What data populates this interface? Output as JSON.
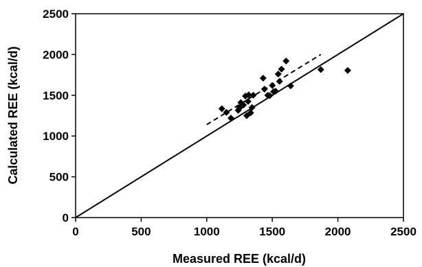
{
  "chart_data": {
    "type": "scatter",
    "xlabel": "Measured REE (kcal/d)",
    "ylabel": "Calculated REE (kcal/d)",
    "xlim": [
      0,
      2500
    ],
    "ylim": [
      0,
      2500
    ],
    "xticks": [
      "0",
      "500",
      "1000",
      "1500",
      "2000",
      "2500"
    ],
    "yticks": [
      "0",
      "500",
      "1000",
      "1500",
      "2000",
      "2500"
    ],
    "grid": false,
    "legend": "none",
    "marker": "diamond",
    "marker_color": "#000000",
    "series": [
      {
        "points": [
          [
            1115,
            1335
          ],
          [
            1150,
            1290
          ],
          [
            1185,
            1220
          ],
          [
            1240,
            1315
          ],
          [
            1250,
            1345
          ],
          [
            1260,
            1410
          ],
          [
            1280,
            1380
          ],
          [
            1295,
            1490
          ],
          [
            1305,
            1250
          ],
          [
            1315,
            1425
          ],
          [
            1320,
            1505
          ],
          [
            1335,
            1285
          ],
          [
            1345,
            1350
          ],
          [
            1355,
            1500
          ],
          [
            1430,
            1710
          ],
          [
            1440,
            1575
          ],
          [
            1465,
            1500
          ],
          [
            1480,
            1495
          ],
          [
            1500,
            1620
          ],
          [
            1510,
            1545
          ],
          [
            1525,
            1550
          ],
          [
            1545,
            1760
          ],
          [
            1555,
            1670
          ],
          [
            1570,
            1820
          ],
          [
            1605,
            1920
          ],
          [
            1640,
            1615
          ],
          [
            1870,
            1815
          ],
          [
            2075,
            1805
          ]
        ]
      }
    ],
    "lines": [
      {
        "style": "solid",
        "x": [
          0,
          2500
        ],
        "y": [
          0,
          2500
        ]
      },
      {
        "style": "dashed",
        "x": [
          1000,
          1870
        ],
        "y": [
          1140,
          2000
        ]
      }
    ]
  }
}
